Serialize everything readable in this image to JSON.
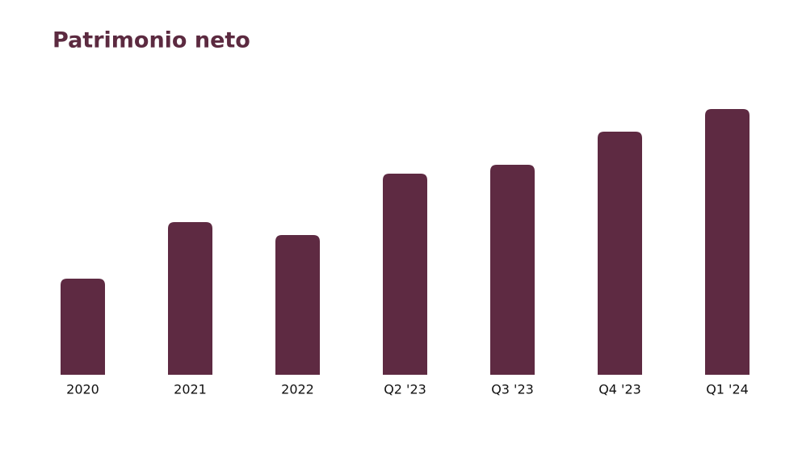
{
  "chart_data": {
    "type": "bar",
    "title": "Patrimonio neto",
    "categories": [
      "2020",
      "2021",
      "2022",
      "Q2 '23",
      "Q3 '23",
      "Q4 '23",
      "Q1 '24"
    ],
    "values": [
      119,
      189,
      173,
      249,
      260,
      301,
      329
    ],
    "color": "#5e2a42",
    "ylim": [
      0,
      350
    ]
  }
}
